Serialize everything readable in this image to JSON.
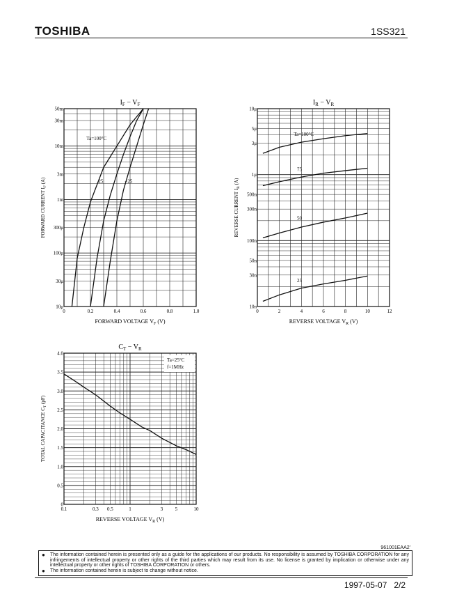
{
  "header": {
    "brand": "TOSHIBA",
    "part_number": "1SS321"
  },
  "chart_data": [
    {
      "type": "line",
      "title_main": "I",
      "title_sub1": "F",
      "title_mid": " − V",
      "title_sub2": "F",
      "xlabel_main": "FORWARD VOLTAGE  V",
      "xlabel_sub": "F",
      "xlabel_unit": "  (V)",
      "ylabel_main": "FORWARD CURRENT  I",
      "ylabel_sub": "F",
      "ylabel_unit": "  (A)",
      "xscale": "linear",
      "yscale": "log",
      "xlim": [
        0,
        1.0
      ],
      "ylim": [
        1e-05,
        0.05
      ],
      "xticks": [
        0,
        0.2,
        0.4,
        0.6,
        0.8,
        1.0
      ],
      "xtick_labels": [
        "0",
        "0.2",
        "0.4",
        "0.6",
        "0.8",
        "1.0"
      ],
      "yticks": [
        1e-05,
        3e-05,
        0.0001,
        0.0003,
        0.001,
        0.003,
        0.01,
        0.03,
        0.05
      ],
      "ytick_labels": [
        "10μ",
        "30μ",
        "100μ",
        "300μ",
        "1m",
        "3m",
        "10m",
        "30m",
        "50m"
      ],
      "grid": true,
      "series": [
        {
          "name": "Ta=100°C",
          "x": [
            0.06,
            0.1,
            0.15,
            0.2,
            0.3,
            0.4,
            0.5,
            0.6
          ],
          "y": [
            1e-05,
            8e-05,
            0.0003,
            0.0009,
            0.004,
            0.01,
            0.025,
            0.05
          ]
        },
        {
          "name": "25",
          "x": [
            0.2,
            0.25,
            0.3,
            0.35,
            0.4,
            0.45,
            0.5,
            0.55,
            0.6
          ],
          "y": [
            1e-05,
            8e-05,
            0.0004,
            0.0012,
            0.003,
            0.007,
            0.015,
            0.03,
            0.05
          ]
        },
        {
          "name": "−25",
          "x": [
            0.3,
            0.35,
            0.4,
            0.45,
            0.5,
            0.55,
            0.6,
            0.64
          ],
          "y": [
            1e-05,
            7e-05,
            0.0004,
            0.0015,
            0.004,
            0.01,
            0.025,
            0.05
          ]
        }
      ],
      "annotations": [
        {
          "text": "Ta=100°C",
          "x": 0.17,
          "y": 0.014
        },
        {
          "text": "25",
          "x": 0.26,
          "y": 0.0022
        },
        {
          "text": "−25",
          "x": 0.46,
          "y": 0.0022
        }
      ]
    },
    {
      "type": "line",
      "title_main": "I",
      "title_sub1": "R",
      "title_mid": " − V",
      "title_sub2": "R",
      "xlabel_main": "REVERSE VOLTAGE  V",
      "xlabel_sub": "R",
      "xlabel_unit": "  (V)",
      "ylabel_main": "REVERSE CURRENT  I",
      "ylabel_sub": "R",
      "ylabel_unit": "  (A)",
      "xscale": "linear",
      "yscale": "log",
      "xlim": [
        0,
        12
      ],
      "ylim": [
        1e-08,
        1e-05
      ],
      "xticks": [
        0,
        2,
        4,
        6,
        8,
        10,
        12
      ],
      "xtick_labels": [
        "0",
        "2",
        "4",
        "6",
        "8",
        "10",
        "12"
      ],
      "yticks": [
        1e-08,
        3e-08,
        5e-08,
        1e-07,
        3e-07,
        5e-07,
        1e-06,
        3e-06,
        5e-06,
        1e-05
      ],
      "ytick_labels": [
        "10n",
        "30n",
        "50n",
        "100n",
        "300n",
        "500n",
        "1μ",
        "3μ",
        "5μ",
        "10μ"
      ],
      "grid": true,
      "series": [
        {
          "name": "Ta=100°C",
          "x": [
            0.5,
            2,
            4,
            6,
            8,
            10
          ],
          "y": [
            2.1e-06,
            2.6e-06,
            3.1e-06,
            3.5e-06,
            3.9e-06,
            4.2e-06
          ]
        },
        {
          "name": "75",
          "x": [
            0.5,
            2,
            4,
            6,
            8,
            10
          ],
          "y": [
            6.8e-07,
            7.8e-07,
            9.2e-07,
            1.05e-06,
            1.15e-06,
            1.25e-06
          ]
        },
        {
          "name": "50",
          "x": [
            0.5,
            2,
            4,
            6,
            8,
            10
          ],
          "y": [
            1.1e-07,
            1.3e-07,
            1.6e-07,
            1.9e-07,
            2.2e-07,
            2.6e-07
          ]
        },
        {
          "name": "25",
          "x": [
            0.5,
            2,
            4,
            6,
            8,
            10
          ],
          "y": [
            1.2e-08,
            1.5e-08,
            1.9e-08,
            2.2e-08,
            2.5e-08,
            2.9e-08
          ]
        }
      ],
      "annotations": [
        {
          "text": "Ta=100°C",
          "x": 3.3,
          "y": 4.1e-06
        },
        {
          "text": "75",
          "x": 3.6,
          "y": 1.2e-06
        },
        {
          "text": "50",
          "x": 3.6,
          "y": 2.2e-07
        },
        {
          "text": "25",
          "x": 3.6,
          "y": 2.5e-08
        }
      ]
    },
    {
      "type": "line",
      "title_main": "C",
      "title_sub1": "T",
      "title_mid": " − V",
      "title_sub2": "R",
      "xlabel_main": "REVERSE VOLTAGE  V",
      "xlabel_sub": "R",
      "xlabel_unit": "  (V)",
      "ylabel_main": "TOTAL CAPACITANCE  C",
      "ylabel_sub": "T",
      "ylabel_unit": "  (pF)",
      "xscale": "log",
      "yscale": "linear",
      "xlim": [
        0.1,
        10
      ],
      "ylim": [
        0,
        4.0
      ],
      "xticks": [
        0.1,
        0.3,
        0.5,
        1,
        3,
        5,
        10
      ],
      "xtick_labels": [
        "0.1",
        "0.3",
        "0.5",
        "1",
        "3",
        "5",
        "10"
      ],
      "yticks": [
        0,
        0.5,
        1.0,
        1.5,
        2.0,
        2.5,
        3.0,
        3.5,
        4.0
      ],
      "ytick_labels": [
        "0",
        "0.5",
        "1.0",
        "1.5",
        "2.0",
        "2.5",
        "3.0",
        "3.5",
        "4.0"
      ],
      "grid": true,
      "series": [
        {
          "name": "",
          "x": [
            0.1,
            0.15,
            0.2,
            0.3,
            0.5,
            0.7,
            1,
            1.5,
            2,
            3,
            5,
            7,
            10
          ],
          "y": [
            3.45,
            3.25,
            3.1,
            2.9,
            2.6,
            2.42,
            2.25,
            2.05,
            1.95,
            1.75,
            1.55,
            1.45,
            1.32
          ]
        }
      ],
      "conditions": [
        "Ta=25°C",
        "f=1MHz"
      ]
    }
  ],
  "doc_code": "961001EAA2'",
  "disclaimer": [
    "The information contained herein is presented only as a guide for the applications of our products. No responsibility is assumed by TOSHIBA CORPORATION for any infringements of intellectual property or other rights of the third parties which may result from its use. No license is granted by implication or otherwise under any intellectual property or other rights of TOSHIBA CORPORATION or others.",
    "The information contained herein is subject to change without notice."
  ],
  "footer": {
    "date": "1997-05-07",
    "page": "2/2"
  }
}
